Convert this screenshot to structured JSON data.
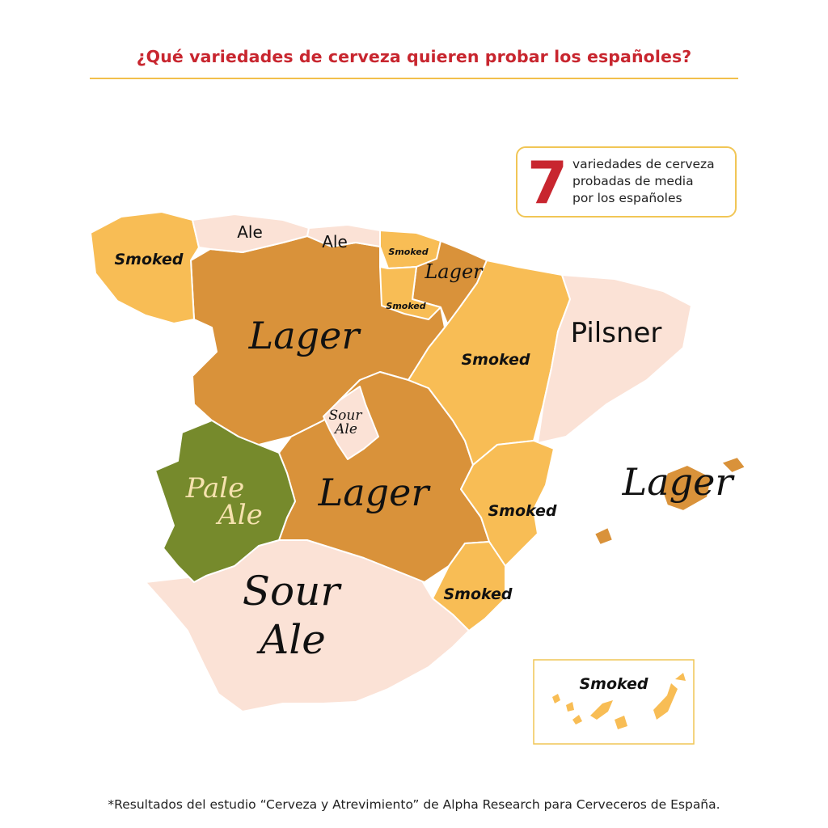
{
  "title": "¿Qué variedades de cerveza quieren probar los españoles?",
  "info": {
    "number": "7",
    "text": "variedades de cerveza\nprobadas de media\npor los españoles"
  },
  "footnote": "*Resultados del estudio “Cerveza y Atrevimiento” de Alpha Research para Cerveceros de España.",
  "colors": {
    "title": "#c8262f",
    "rule": "#f2c04c",
    "smoked": "#f8bd55",
    "lager": "#d9923a",
    "sour_ale": "#fbe2d6",
    "ale": "#fbe2d6",
    "pilsner": "#fbe2d6",
    "pale_ale": "#768a2c",
    "borders": "#ffffff"
  },
  "regions": {
    "galicia": "Smoked",
    "asturias": "Ale",
    "cantabria": "Ale",
    "pais_vasco": "Smoked",
    "navarra": "Lager",
    "la_rioja": "Smoked",
    "aragon": "Smoked",
    "cataluna": "Pilsner",
    "castilla_y_leon": "Lager",
    "madrid": "Sour Ale",
    "castilla_la_mancha": "Lager",
    "extremadura": "Pale Ale",
    "valencia": "Smoked",
    "murcia": "Smoked",
    "andalucia": "Sour Ale",
    "baleares": "Lager",
    "canarias": "Smoked"
  }
}
